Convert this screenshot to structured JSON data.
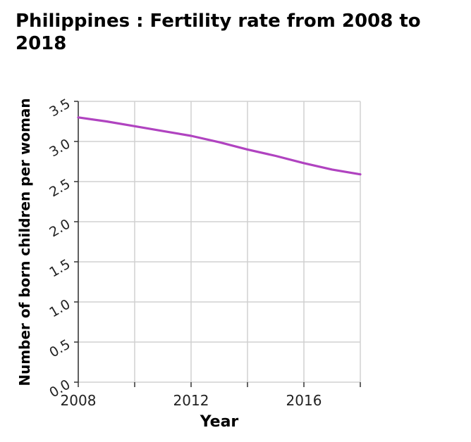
{
  "chart_data": {
    "type": "line",
    "title": "Philippines : Fertility rate from 2008 to 2018",
    "xlabel": "Year",
    "ylabel": "Number of born children per woman",
    "xlim": [
      2008,
      2018
    ],
    "ylim": [
      0,
      3.5
    ],
    "x_ticks": [
      2008,
      2012,
      2016
    ],
    "y_ticks": [
      "0.0",
      "0.5",
      "1.0",
      "1.5",
      "2.0",
      "2.5",
      "3.0",
      "3.5"
    ],
    "grid": true,
    "legend": "none",
    "series": [
      {
        "color": "#b043c0",
        "x": [
          2008,
          2009,
          2010,
          2011,
          2012,
          2013,
          2014,
          2015,
          2016,
          2017,
          2018
        ],
        "values": [
          3.3,
          3.25,
          3.19,
          3.13,
          3.07,
          2.99,
          2.9,
          2.82,
          2.73,
          2.65,
          2.59
        ]
      }
    ]
  }
}
